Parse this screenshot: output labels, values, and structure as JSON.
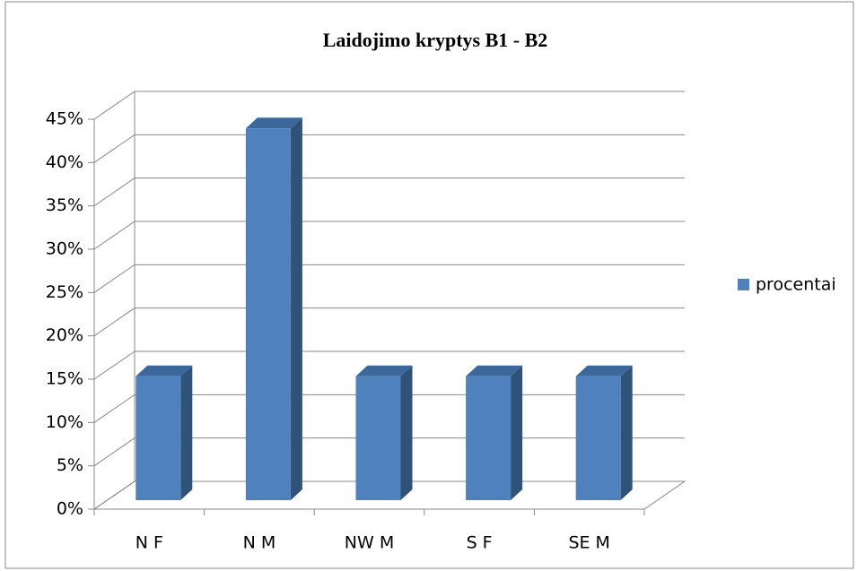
{
  "chart_data": {
    "type": "bar3d",
    "title": "Laidojimo kryptys B1 - B2",
    "categories": [
      "N F",
      "N M",
      "NW M",
      "S F",
      "SE M"
    ],
    "series": [
      {
        "name": "procentai",
        "color": "#4f81bd",
        "values": [
          14.3,
          42.9,
          14.3,
          14.3,
          14.3
        ]
      }
    ],
    "ylim": [
      0,
      45
    ],
    "yticks": [
      {
        "value": 0,
        "label": "0%"
      },
      {
        "value": 5,
        "label": "5%"
      },
      {
        "value": 10,
        "label": "10%"
      },
      {
        "value": 15,
        "label": "15%"
      },
      {
        "value": 20,
        "label": "20%"
      },
      {
        "value": 25,
        "label": "25%"
      },
      {
        "value": 30,
        "label": "30%"
      },
      {
        "value": 35,
        "label": "35%"
      },
      {
        "value": 40,
        "label": "40%"
      },
      {
        "value": 45,
        "label": "45%"
      }
    ],
    "grid": true,
    "legend": "right"
  }
}
